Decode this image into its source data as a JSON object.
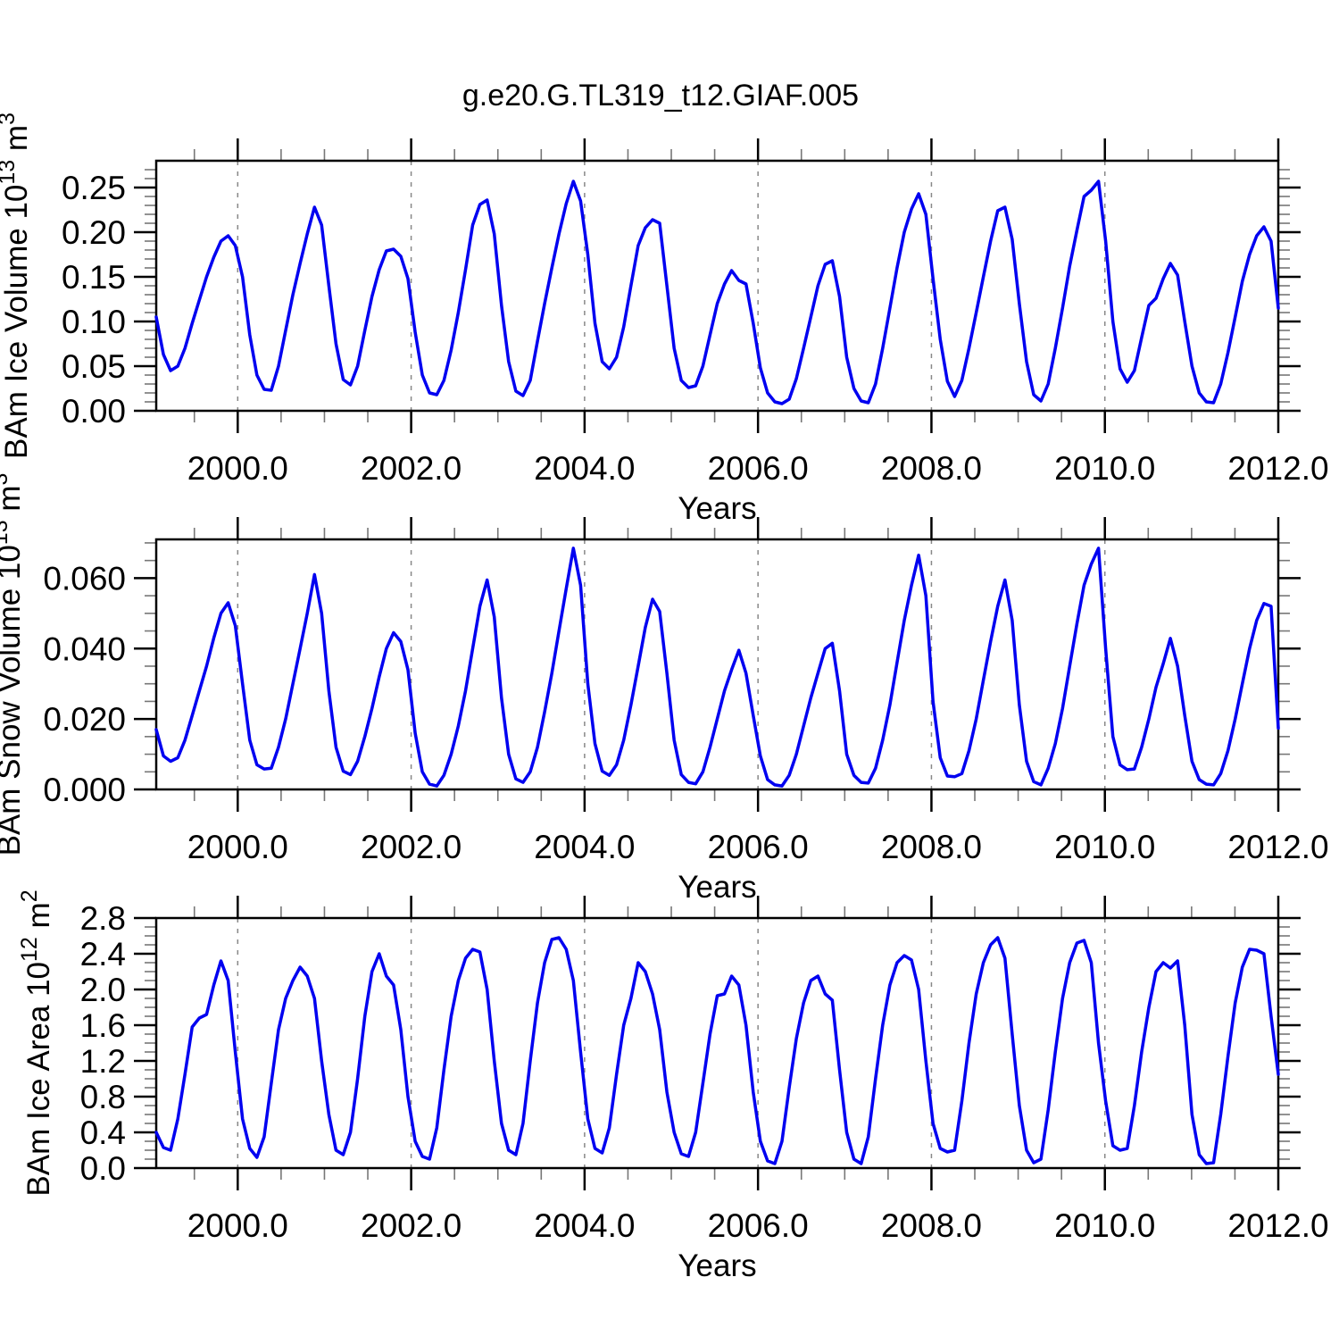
{
  "title": "g.e20.G.TL319_t12.GIAF.005",
  "colors": {
    "line": "#0000F0",
    "grid": "#888888",
    "axis": "#000000",
    "minor_tick": "#777777",
    "background": "#ffffff"
  },
  "chart_data": [
    {
      "type": "line",
      "panel": "ice-volume",
      "ylabel_plain": "BAm Ice Volume 10^13 m^3",
      "ylabel_parts": [
        {
          "t": "BAm Ice Volume 10",
          "sup": false
        },
        {
          "t": "13",
          "sup": true
        },
        {
          "t": " m",
          "sup": false
        },
        {
          "t": "3",
          "sup": true
        }
      ],
      "xlabel": "Years",
      "xlim": [
        1999.06,
        2012.0
      ],
      "ylim": [
        0,
        0.28
      ],
      "xticks_major": [
        2000.0,
        2002.0,
        2004.0,
        2006.0,
        2008.0,
        2010.0,
        2012.0
      ],
      "xtick_labels": [
        "2000.0",
        "2002.0",
        "2004.0",
        "2006.0",
        "2008.0",
        "2010.0",
        "2012.0"
      ],
      "xminor_step": 0.5,
      "yticks_major": [
        0.0,
        0.05,
        0.1,
        0.15,
        0.2,
        0.25
      ],
      "ytick_labels": [
        "0.00",
        "0.05",
        "0.10",
        "0.15",
        "0.20",
        "0.25"
      ],
      "ymajor_step": 0.05,
      "yminor_step": 0.01,
      "grid_x": [
        2000,
        2002,
        2004,
        2006,
        2008,
        2010
      ],
      "grid_on": true,
      "legend": "none",
      "x_start": 1999.06,
      "x_end": 2012.0,
      "x_note": "monthly values Jan 1999 - Dec 2011 plus edge point at 2012.0",
      "values": [
        0.105,
        0.063,
        0.045,
        0.05,
        0.07,
        0.098,
        0.124,
        0.15,
        0.172,
        0.19,
        0.196,
        0.185,
        0.15,
        0.085,
        0.04,
        0.024,
        0.023,
        0.05,
        0.09,
        0.13,
        0.165,
        0.198,
        0.228,
        0.208,
        0.14,
        0.075,
        0.035,
        0.029,
        0.05,
        0.09,
        0.128,
        0.158,
        0.179,
        0.181,
        0.173,
        0.148,
        0.088,
        0.04,
        0.02,
        0.018,
        0.034,
        0.068,
        0.11,
        0.158,
        0.208,
        0.231,
        0.236,
        0.198,
        0.118,
        0.055,
        0.022,
        0.017,
        0.034,
        0.078,
        0.12,
        0.16,
        0.198,
        0.232,
        0.257,
        0.235,
        0.175,
        0.098,
        0.055,
        0.047,
        0.06,
        0.094,
        0.14,
        0.185,
        0.205,
        0.214,
        0.21,
        0.14,
        0.07,
        0.034,
        0.026,
        0.028,
        0.05,
        0.085,
        0.12,
        0.142,
        0.157,
        0.146,
        0.142,
        0.098,
        0.048,
        0.02,
        0.01,
        0.008,
        0.013,
        0.036,
        0.07,
        0.105,
        0.14,
        0.164,
        0.168,
        0.128,
        0.06,
        0.025,
        0.011,
        0.009,
        0.03,
        0.07,
        0.115,
        0.16,
        0.2,
        0.226,
        0.243,
        0.22,
        0.148,
        0.08,
        0.033,
        0.016,
        0.034,
        0.07,
        0.11,
        0.15,
        0.19,
        0.224,
        0.228,
        0.192,
        0.12,
        0.055,
        0.018,
        0.011,
        0.03,
        0.07,
        0.115,
        0.162,
        0.202,
        0.24,
        0.247,
        0.257,
        0.19,
        0.1,
        0.047,
        0.032,
        0.045,
        0.082,
        0.118,
        0.126,
        0.148,
        0.165,
        0.152,
        0.1,
        0.05,
        0.02,
        0.01,
        0.009,
        0.03,
        0.065,
        0.105,
        0.145,
        0.175,
        0.196,
        0.206,
        0.19,
        0.115
      ]
    },
    {
      "type": "line",
      "panel": "snow-volume",
      "ylabel_plain": "BAm Snow Volume 10^13 m^3",
      "ylabel_parts": [
        {
          "t": "BAm Snow Volume 10",
          "sup": false
        },
        {
          "t": "13",
          "sup": true
        },
        {
          "t": " m",
          "sup": false
        },
        {
          "t": "3",
          "sup": true
        }
      ],
      "xlabel": "Years",
      "xlim": [
        1999.06,
        2012.0
      ],
      "ylim": [
        0,
        0.071
      ],
      "xticks_major": [
        2000.0,
        2002.0,
        2004.0,
        2006.0,
        2008.0,
        2010.0,
        2012.0
      ],
      "xtick_labels": [
        "2000.0",
        "2002.0",
        "2004.0",
        "2006.0",
        "2008.0",
        "2010.0",
        "2012.0"
      ],
      "xminor_step": 0.5,
      "yticks_major": [
        0.0,
        0.02,
        0.04,
        0.06
      ],
      "ytick_labels": [
        "0.000",
        "0.020",
        "0.040",
        "0.060"
      ],
      "ymajor_step": 0.02,
      "yminor_step": 0.005,
      "grid_x": [
        2000,
        2002,
        2004,
        2006,
        2008,
        2010
      ],
      "grid_on": true,
      "legend": "none",
      "x_start": 1999.06,
      "x_end": 2012.0,
      "x_note": "monthly values Jan 1999 - Dec 2011 plus edge point at 2012.0",
      "values": [
        0.017,
        0.0095,
        0.008,
        0.009,
        0.014,
        0.021,
        0.028,
        0.035,
        0.043,
        0.05,
        0.053,
        0.0465,
        0.03,
        0.014,
        0.007,
        0.0058,
        0.006,
        0.012,
        0.02,
        0.03,
        0.04,
        0.05,
        0.061,
        0.05,
        0.028,
        0.012,
        0.0052,
        0.0042,
        0.008,
        0.015,
        0.023,
        0.032,
        0.04,
        0.0445,
        0.042,
        0.034,
        0.016,
        0.005,
        0.0015,
        0.001,
        0.004,
        0.01,
        0.018,
        0.028,
        0.04,
        0.052,
        0.0595,
        0.049,
        0.026,
        0.01,
        0.003,
        0.002,
        0.005,
        0.012,
        0.022,
        0.033,
        0.045,
        0.057,
        0.0685,
        0.058,
        0.03,
        0.013,
        0.0052,
        0.004,
        0.007,
        0.014,
        0.024,
        0.035,
        0.046,
        0.054,
        0.0505,
        0.033,
        0.014,
        0.0042,
        0.002,
        0.0016,
        0.005,
        0.012,
        0.02,
        0.028,
        0.034,
        0.0395,
        0.033,
        0.021,
        0.0095,
        0.0028,
        0.0013,
        0.001,
        0.004,
        0.01,
        0.018,
        0.026,
        0.033,
        0.04,
        0.0415,
        0.028,
        0.01,
        0.004,
        0.002,
        0.0018,
        0.006,
        0.014,
        0.024,
        0.036,
        0.048,
        0.058,
        0.0665,
        0.055,
        0.025,
        0.009,
        0.0038,
        0.0036,
        0.0045,
        0.011,
        0.02,
        0.031,
        0.042,
        0.052,
        0.0595,
        0.048,
        0.024,
        0.008,
        0.0022,
        0.0013,
        0.006,
        0.013,
        0.023,
        0.035,
        0.047,
        0.058,
        0.064,
        0.0685,
        0.04,
        0.015,
        0.007,
        0.0056,
        0.0058,
        0.012,
        0.02,
        0.029,
        0.0357,
        0.0429,
        0.035,
        0.021,
        0.008,
        0.0028,
        0.0015,
        0.0013,
        0.0045,
        0.011,
        0.02,
        0.03,
        0.04,
        0.048,
        0.0528,
        0.052,
        0.0174
      ]
    },
    {
      "type": "line",
      "panel": "ice-area",
      "ylabel_plain": "BAm Ice Area 10^12 m^2",
      "ylabel_parts": [
        {
          "t": "BAm Ice Area 10",
          "sup": false
        },
        {
          "t": "12",
          "sup": true
        },
        {
          "t": " m",
          "sup": false
        },
        {
          "t": "2",
          "sup": true
        }
      ],
      "xlabel": "Years",
      "xlim": [
        1999.06,
        2012.0
      ],
      "ylim": [
        0,
        2.8
      ],
      "xticks_major": [
        2000.0,
        2002.0,
        2004.0,
        2006.0,
        2008.0,
        2010.0,
        2012.0
      ],
      "xtick_labels": [
        "2000.0",
        "2002.0",
        "2004.0",
        "2006.0",
        "2008.0",
        "2010.0",
        "2012.0"
      ],
      "xminor_step": 0.5,
      "yticks_major": [
        0.0,
        0.4,
        0.8,
        1.2,
        1.6,
        2.0,
        2.4,
        2.8
      ],
      "ytick_labels": [
        "0.0",
        "0.4",
        "0.8",
        "1.2",
        "1.6",
        "2.0",
        "2.4",
        "2.8"
      ],
      "ymajor_step": 0.4,
      "yminor_step": 0.1,
      "grid_x": [
        2000,
        2002,
        2004,
        2006,
        2008,
        2010
      ],
      "grid_on": true,
      "legend": "none",
      "x_start": 1999.06,
      "x_end": 2012.0,
      "x_note": "monthly values Jan 1999 - Dec 2011 plus edge point at 2012.0",
      "values": [
        0.4,
        0.23,
        0.2,
        0.55,
        1.05,
        1.58,
        1.68,
        1.72,
        2.05,
        2.32,
        2.1,
        1.3,
        0.55,
        0.22,
        0.12,
        0.35,
        0.95,
        1.55,
        1.9,
        2.1,
        2.25,
        2.15,
        1.9,
        1.2,
        0.6,
        0.2,
        0.15,
        0.4,
        1.0,
        1.7,
        2.2,
        2.4,
        2.15,
        2.05,
        1.55,
        0.8,
        0.3,
        0.13,
        0.1,
        0.45,
        1.1,
        1.7,
        2.1,
        2.35,
        2.45,
        2.42,
        2.0,
        1.2,
        0.5,
        0.2,
        0.15,
        0.5,
        1.2,
        1.85,
        2.3,
        2.56,
        2.58,
        2.45,
        2.1,
        1.3,
        0.55,
        0.22,
        0.17,
        0.45,
        1.05,
        1.6,
        1.9,
        2.3,
        2.2,
        1.95,
        1.55,
        0.85,
        0.4,
        0.16,
        0.13,
        0.4,
        0.95,
        1.5,
        1.93,
        1.95,
        2.15,
        2.05,
        1.6,
        0.85,
        0.3,
        0.08,
        0.05,
        0.3,
        0.9,
        1.45,
        1.85,
        2.1,
        2.15,
        1.95,
        1.88,
        1.1,
        0.4,
        0.1,
        0.05,
        0.35,
        1.0,
        1.6,
        2.05,
        2.3,
        2.38,
        2.33,
        2.0,
        1.2,
        0.5,
        0.22,
        0.18,
        0.2,
        0.75,
        1.4,
        1.95,
        2.3,
        2.5,
        2.58,
        2.35,
        1.5,
        0.7,
        0.2,
        0.06,
        0.1,
        0.65,
        1.3,
        1.9,
        2.3,
        2.52,
        2.55,
        2.3,
        1.4,
        0.75,
        0.25,
        0.2,
        0.22,
        0.7,
        1.3,
        1.8,
        2.2,
        2.3,
        2.24,
        2.32,
        1.6,
        0.6,
        0.15,
        0.05,
        0.06,
        0.6,
        1.25,
        1.85,
        2.25,
        2.45,
        2.44,
        2.4,
        1.7,
        1.05
      ]
    }
  ]
}
